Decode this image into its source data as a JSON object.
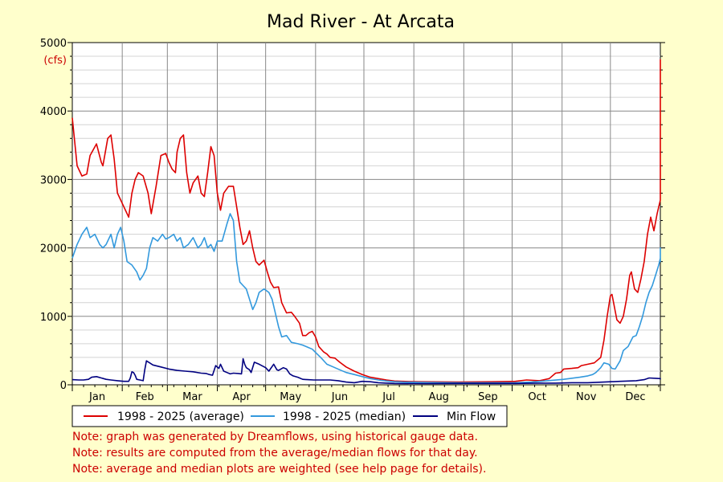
{
  "chart_data": {
    "type": "line",
    "title": "Mad River - At Arcata",
    "yunit": "(cfs)",
    "ylim": [
      0,
      5000
    ],
    "yticks": [
      0,
      1000,
      2000,
      3000,
      4000,
      5000
    ],
    "grid": true,
    "xlim": [
      0,
      365
    ],
    "month_labels": [
      "Jan",
      "Feb",
      "Mar",
      "Apr",
      "May",
      "Jun",
      "Jul",
      "Aug",
      "Sep",
      "Oct",
      "Nov",
      "Dec"
    ],
    "series": [
      {
        "name": "1998 - 2025 (average)",
        "color": "#dd0000",
        "points": [
          [
            0,
            3900
          ],
          [
            3,
            3200
          ],
          [
            6,
            3050
          ],
          [
            9,
            3080
          ],
          [
            11,
            3350
          ],
          [
            15,
            3520
          ],
          [
            18,
            3250
          ],
          [
            19,
            3200
          ],
          [
            22,
            3600
          ],
          [
            24,
            3650
          ],
          [
            26,
            3300
          ],
          [
            28,
            2800
          ],
          [
            31,
            2650
          ],
          [
            35,
            2450
          ],
          [
            37,
            2800
          ],
          [
            39,
            3000
          ],
          [
            41,
            3100
          ],
          [
            44,
            3050
          ],
          [
            47,
            2800
          ],
          [
            49,
            2500
          ],
          [
            52,
            2900
          ],
          [
            55,
            3350
          ],
          [
            58,
            3380
          ],
          [
            60,
            3250
          ],
          [
            62,
            3150
          ],
          [
            64,
            3100
          ],
          [
            65,
            3400
          ],
          [
            67,
            3600
          ],
          [
            69,
            3650
          ],
          [
            71,
            3100
          ],
          [
            73,
            2800
          ],
          [
            75,
            2950
          ],
          [
            78,
            3050
          ],
          [
            80,
            2800
          ],
          [
            82,
            2750
          ],
          [
            84,
            3100
          ],
          [
            86,
            3480
          ],
          [
            88,
            3350
          ],
          [
            90,
            2800
          ],
          [
            92,
            2550
          ],
          [
            94,
            2800
          ],
          [
            97,
            2900
          ],
          [
            100,
            2900
          ],
          [
            102,
            2600
          ],
          [
            104,
            2300
          ],
          [
            106,
            2050
          ],
          [
            108,
            2100
          ],
          [
            110,
            2250
          ],
          [
            112,
            2000
          ],
          [
            114,
            1800
          ],
          [
            116,
            1750
          ],
          [
            119,
            1820
          ],
          [
            121,
            1650
          ],
          [
            123,
            1500
          ],
          [
            125,
            1420
          ],
          [
            128,
            1430
          ],
          [
            130,
            1200
          ],
          [
            133,
            1050
          ],
          [
            136,
            1060
          ],
          [
            138,
            1000
          ],
          [
            141,
            900
          ],
          [
            143,
            720
          ],
          [
            145,
            720
          ],
          [
            147,
            760
          ],
          [
            149,
            780
          ],
          [
            151,
            700
          ],
          [
            153,
            560
          ],
          [
            156,
            480
          ],
          [
            158,
            450
          ],
          [
            160,
            400
          ],
          [
            163,
            390
          ],
          [
            166,
            330
          ],
          [
            170,
            260
          ],
          [
            175,
            200
          ],
          [
            180,
            150
          ],
          [
            185,
            110
          ],
          [
            190,
            90
          ],
          [
            195,
            70
          ],
          [
            200,
            55
          ],
          [
            205,
            50
          ],
          [
            215,
            45
          ],
          [
            240,
            40
          ],
          [
            260,
            45
          ],
          [
            275,
            50
          ],
          [
            282,
            70
          ],
          [
            290,
            60
          ],
          [
            296,
            90
          ],
          [
            300,
            170
          ],
          [
            303,
            180
          ],
          [
            305,
            230
          ],
          [
            310,
            240
          ],
          [
            314,
            250
          ],
          [
            316,
            280
          ],
          [
            320,
            300
          ],
          [
            324,
            320
          ],
          [
            328,
            400
          ],
          [
            330,
            650
          ],
          [
            332,
            1000
          ],
          [
            334,
            1300
          ],
          [
            335,
            1320
          ],
          [
            336,
            1200
          ],
          [
            338,
            950
          ],
          [
            340,
            900
          ],
          [
            342,
            1000
          ],
          [
            344,
            1250
          ],
          [
            346,
            1600
          ],
          [
            347,
            1650
          ],
          [
            349,
            1400
          ],
          [
            351,
            1350
          ],
          [
            353,
            1550
          ],
          [
            355,
            1800
          ],
          [
            357,
            2200
          ],
          [
            359,
            2450
          ],
          [
            361,
            2250
          ],
          [
            363,
            2500
          ],
          [
            365,
            2700
          ],
          [
            367,
            2950
          ],
          [
            369,
            2750
          ],
          [
            371,
            3000
          ],
          [
            373,
            4200
          ],
          [
            374,
            4700
          ],
          [
            376,
            4750
          ],
          [
            377,
            4200
          ]
        ]
      },
      {
        "name": "1998 - 2025 (median)",
        "color": "#3399dd",
        "points": [
          [
            0,
            1850
          ],
          [
            3,
            2050
          ],
          [
            6,
            2200
          ],
          [
            9,
            2300
          ],
          [
            11,
            2150
          ],
          [
            14,
            2200
          ],
          [
            17,
            2050
          ],
          [
            19,
            2000
          ],
          [
            21,
            2050
          ],
          [
            24,
            2200
          ],
          [
            26,
            2000
          ],
          [
            28,
            2200
          ],
          [
            30,
            2300
          ],
          [
            32,
            2100
          ],
          [
            34,
            1800
          ],
          [
            37,
            1750
          ],
          [
            40,
            1650
          ],
          [
            42,
            1530
          ],
          [
            44,
            1600
          ],
          [
            46,
            1700
          ],
          [
            48,
            2000
          ],
          [
            50,
            2150
          ],
          [
            53,
            2100
          ],
          [
            56,
            2200
          ],
          [
            58,
            2130
          ],
          [
            60,
            2150
          ],
          [
            63,
            2200
          ],
          [
            65,
            2100
          ],
          [
            67,
            2150
          ],
          [
            69,
            2000
          ],
          [
            72,
            2050
          ],
          [
            75,
            2150
          ],
          [
            78,
            2000
          ],
          [
            80,
            2050
          ],
          [
            82,
            2150
          ],
          [
            84,
            2000
          ],
          [
            86,
            2050
          ],
          [
            88,
            1950
          ],
          [
            90,
            2100
          ],
          [
            93,
            2100
          ],
          [
            96,
            2350
          ],
          [
            98,
            2500
          ],
          [
            100,
            2400
          ],
          [
            102,
            1800
          ],
          [
            104,
            1500
          ],
          [
            106,
            1450
          ],
          [
            108,
            1400
          ],
          [
            110,
            1250
          ],
          [
            112,
            1100
          ],
          [
            114,
            1200
          ],
          [
            116,
            1350
          ],
          [
            119,
            1400
          ],
          [
            122,
            1350
          ],
          [
            124,
            1250
          ],
          [
            126,
            1050
          ],
          [
            128,
            850
          ],
          [
            130,
            700
          ],
          [
            133,
            720
          ],
          [
            136,
            620
          ],
          [
            140,
            600
          ],
          [
            143,
            580
          ],
          [
            146,
            550
          ],
          [
            149,
            520
          ],
          [
            152,
            450
          ],
          [
            155,
            380
          ],
          [
            158,
            300
          ],
          [
            162,
            260
          ],
          [
            166,
            220
          ],
          [
            170,
            180
          ],
          [
            175,
            150
          ],
          [
            180,
            120
          ],
          [
            185,
            90
          ],
          [
            190,
            70
          ],
          [
            195,
            55
          ],
          [
            200,
            45
          ],
          [
            205,
            40
          ],
          [
            220,
            35
          ],
          [
            240,
            30
          ],
          [
            260,
            30
          ],
          [
            275,
            30
          ],
          [
            285,
            40
          ],
          [
            295,
            60
          ],
          [
            305,
            80
          ],
          [
            315,
            110
          ],
          [
            320,
            130
          ],
          [
            323,
            150
          ],
          [
            325,
            180
          ],
          [
            328,
            250
          ],
          [
            330,
            320
          ],
          [
            333,
            300
          ],
          [
            335,
            240
          ],
          [
            337,
            230
          ],
          [
            340,
            350
          ],
          [
            342,
            500
          ],
          [
            345,
            560
          ],
          [
            348,
            700
          ],
          [
            350,
            720
          ],
          [
            352,
            850
          ],
          [
            354,
            1000
          ],
          [
            356,
            1200
          ],
          [
            358,
            1350
          ],
          [
            360,
            1450
          ],
          [
            362,
            1600
          ],
          [
            364,
            1750
          ],
          [
            366,
            1850
          ],
          [
            368,
            1800
          ],
          [
            370,
            1850
          ],
          [
            372,
            1900
          ],
          [
            374,
            2000
          ],
          [
            376,
            1950
          ]
        ]
      },
      {
        "name": "Min Flow",
        "color": "#000080",
        "points": [
          [
            0,
            75
          ],
          [
            4,
            70
          ],
          [
            7,
            70
          ],
          [
            10,
            80
          ],
          [
            12,
            110
          ],
          [
            15,
            120
          ],
          [
            18,
            100
          ],
          [
            21,
            80
          ],
          [
            24,
            70
          ],
          [
            28,
            60
          ],
          [
            30,
            55
          ],
          [
            32,
            50
          ],
          [
            35,
            50
          ],
          [
            36,
            100
          ],
          [
            37,
            190
          ],
          [
            38,
            180
          ],
          [
            39,
            140
          ],
          [
            40,
            80
          ],
          [
            42,
            70
          ],
          [
            44,
            60
          ],
          [
            45,
            220
          ],
          [
            46,
            350
          ],
          [
            48,
            320
          ],
          [
            50,
            290
          ],
          [
            55,
            260
          ],
          [
            60,
            230
          ],
          [
            65,
            210
          ],
          [
            70,
            200
          ],
          [
            75,
            190
          ],
          [
            80,
            170
          ],
          [
            83,
            165
          ],
          [
            85,
            150
          ],
          [
            87,
            140
          ],
          [
            89,
            280
          ],
          [
            91,
            240
          ],
          [
            92,
            300
          ],
          [
            94,
            200
          ],
          [
            96,
            180
          ],
          [
            98,
            160
          ],
          [
            100,
            170
          ],
          [
            103,
            165
          ],
          [
            105,
            160
          ],
          [
            106,
            380
          ],
          [
            107,
            300
          ],
          [
            108,
            250
          ],
          [
            110,
            220
          ],
          [
            111,
            180
          ],
          [
            113,
            330
          ],
          [
            116,
            300
          ],
          [
            120,
            250
          ],
          [
            122,
            200
          ],
          [
            125,
            300
          ],
          [
            127,
            220
          ],
          [
            128,
            210
          ],
          [
            131,
            250
          ],
          [
            133,
            230
          ],
          [
            135,
            160
          ],
          [
            137,
            130
          ],
          [
            140,
            110
          ],
          [
            143,
            80
          ],
          [
            146,
            75
          ],
          [
            150,
            70
          ],
          [
            155,
            70
          ],
          [
            160,
            70
          ],
          [
            165,
            60
          ],
          [
            170,
            40
          ],
          [
            175,
            30
          ],
          [
            180,
            50
          ],
          [
            185,
            45
          ],
          [
            190,
            30
          ],
          [
            195,
            25
          ],
          [
            200,
            20
          ],
          [
            220,
            18
          ],
          [
            240,
            20
          ],
          [
            260,
            20
          ],
          [
            275,
            20
          ],
          [
            290,
            25
          ],
          [
            300,
            25
          ],
          [
            310,
            30
          ],
          [
            320,
            30
          ],
          [
            330,
            40
          ],
          [
            340,
            50
          ],
          [
            350,
            60
          ],
          [
            355,
            75
          ],
          [
            358,
            100
          ],
          [
            362,
            95
          ],
          [
            366,
            90
          ],
          [
            370,
            85
          ],
          [
            376,
            80
          ]
        ]
      }
    ],
    "notes": [
      "Note: graph was generated by Dreamflows, using historical gauge data.",
      "Note: results are computed from the average/median flows for that day.",
      "Note: average and median plots are weighted (see help page for details)."
    ]
  }
}
